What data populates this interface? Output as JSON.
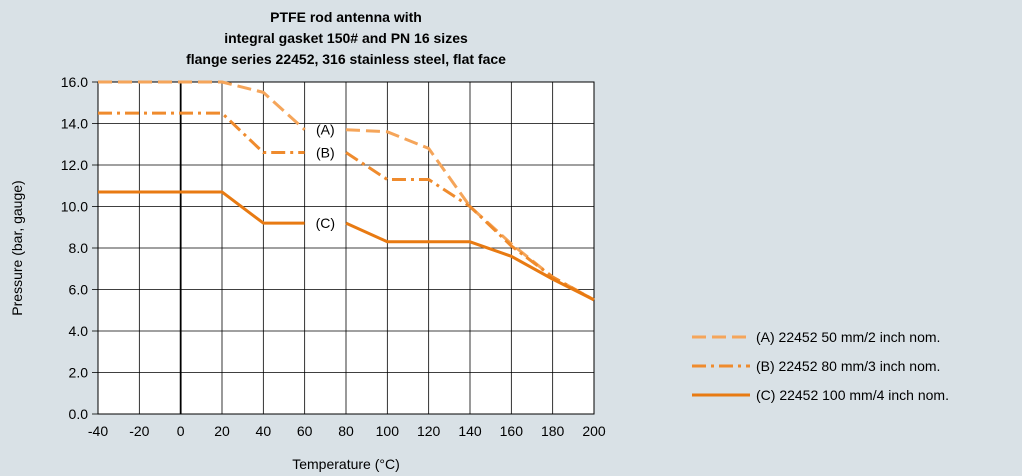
{
  "chart_data": {
    "type": "line",
    "title": [
      "PTFE rod antenna with",
      "integral gasket 150# and PN 16 sizes",
      "flange series 22452, 316 stainless steel, flat face"
    ],
    "xlabel": "Temperature (°C)",
    "ylabel": "Pressure (bar, gauge)",
    "xlim": [
      -40,
      200
    ],
    "ylim": [
      0,
      16
    ],
    "xticks": [
      -40,
      -20,
      0,
      20,
      40,
      60,
      80,
      100,
      120,
      140,
      160,
      180,
      200
    ],
    "yticks": [
      "0.0",
      "2.0",
      "4.0",
      "6.0",
      "8.0",
      "10.0",
      "12.0",
      "14.0",
      "16.0"
    ],
    "grid": true,
    "legend_position": "bottom-right",
    "series": [
      {
        "name": "(A) 22452 50 mm/2 inch nom.",
        "label": "(A)",
        "color": "#f5a55a",
        "dash": "dashed",
        "points": [
          [
            -40,
            16.0
          ],
          [
            20,
            16.0
          ],
          [
            40,
            15.5
          ],
          [
            60,
            13.7
          ],
          [
            80,
            13.7
          ],
          [
            100,
            13.6
          ],
          [
            120,
            12.8
          ],
          [
            140,
            10.0
          ],
          [
            160,
            8.2
          ],
          [
            180,
            6.6
          ],
          [
            200,
            5.5
          ]
        ]
      },
      {
        "name": "(B) 22452 80 mm/3 inch nom.",
        "label": "(B)",
        "color": "#ef8b2d",
        "dash": "dashdot",
        "points": [
          [
            -40,
            14.5
          ],
          [
            20,
            14.5
          ],
          [
            40,
            12.6
          ],
          [
            60,
            12.6
          ],
          [
            80,
            12.6
          ],
          [
            100,
            11.3
          ],
          [
            120,
            11.3
          ],
          [
            140,
            10.0
          ],
          [
            160,
            8.1
          ],
          [
            180,
            6.6
          ],
          [
            200,
            5.5
          ]
        ]
      },
      {
        "name": "(C) 22452 100 mm/4 inch nom.",
        "label": "(C)",
        "color": "#e87a12",
        "dash": "solid",
        "points": [
          [
            -40,
            10.7
          ],
          [
            20,
            10.7
          ],
          [
            40,
            9.2
          ],
          [
            60,
            9.2
          ],
          [
            80,
            9.2
          ],
          [
            100,
            8.3
          ],
          [
            120,
            8.3
          ],
          [
            140,
            8.3
          ],
          [
            160,
            7.6
          ],
          [
            180,
            6.5
          ],
          [
            200,
            5.5
          ]
        ]
      }
    ],
    "annotations": [
      {
        "text": "(A)",
        "x": 70,
        "y": 13.7
      },
      {
        "text": "(B)",
        "x": 70,
        "y": 12.6
      },
      {
        "text": "(C)",
        "x": 70,
        "y": 9.2
      }
    ]
  }
}
